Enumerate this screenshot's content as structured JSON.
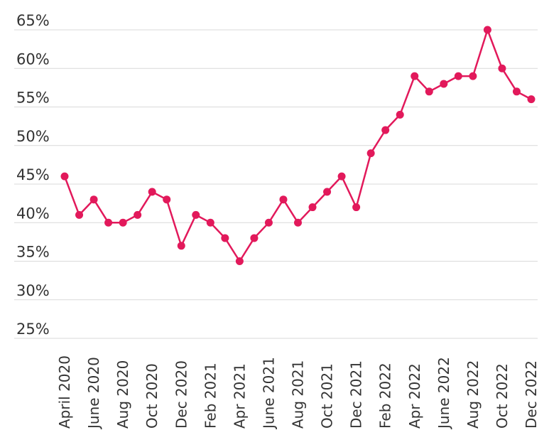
{
  "chart_data": {
    "type": "line",
    "title": "",
    "xlabel": "",
    "ylabel": "",
    "ylim": [
      25,
      65
    ],
    "y_ticks": [
      "25%",
      "30%",
      "35%",
      "40%",
      "45%",
      "50%",
      "55%",
      "60%",
      "65%"
    ],
    "grid": true,
    "legend": "none",
    "x_tick_labels": [
      "April 2020",
      "June 2020",
      "Aug 2020",
      "Oct 2020",
      "Dec 2020",
      "Feb 2021",
      "Apr 2021",
      "June 2021",
      "Aug 2021",
      "Oct 2021",
      "Dec 2021",
      "Feb 2022",
      "Apr 2022",
      "June 2022",
      "Aug 2022",
      "Oct 2022",
      "Dec 2022"
    ],
    "x": [
      "Apr 2020",
      "May 2020",
      "Jun 2020",
      "Jul 2020",
      "Aug 2020",
      "Sep 2020",
      "Oct 2020",
      "Nov 2020",
      "Dec 2020",
      "Jan 2021",
      "Feb 2021",
      "Mar 2021",
      "Apr 2021",
      "May 2021",
      "Jun 2021",
      "Jul 2021",
      "Aug 2021",
      "Sep 2021",
      "Oct 2021",
      "Nov 2021",
      "Dec 2021",
      "Jan 2022",
      "Feb 2022",
      "Mar 2022",
      "Apr 2022",
      "May 2022",
      "Jun 2022",
      "Jul 2022",
      "Aug 2022",
      "Sep 2022",
      "Oct 2022",
      "Nov 2022",
      "Dec 2022"
    ],
    "series": [
      {
        "color": "#e2195b",
        "values": [
          46,
          41,
          43,
          40,
          40,
          41,
          44,
          43,
          37,
          41,
          40,
          38,
          35,
          38,
          40,
          43,
          40,
          42,
          44,
          46,
          42,
          49,
          52,
          54,
          59,
          57,
          58,
          59,
          59,
          65,
          60,
          57,
          56
        ]
      }
    ]
  }
}
